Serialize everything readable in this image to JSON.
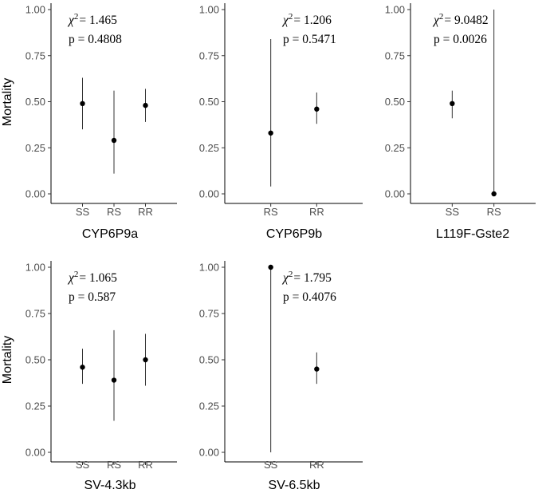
{
  "figure": {
    "ylabel": "Mortality",
    "y_ticks": [
      "0.00",
      "0.25",
      "0.50",
      "0.75",
      "1.00"
    ],
    "ylim": [
      0,
      1
    ]
  },
  "chart_data": [
    {
      "type": "scatter",
      "title": "",
      "xlabel": "CYP6P9a",
      "ylabel": "Mortality",
      "categories": [
        "SS",
        "RS",
        "RR"
      ],
      "values": [
        0.49,
        0.29,
        0.48
      ],
      "error_low": [
        0.35,
        0.11,
        0.39
      ],
      "error_high": [
        0.63,
        0.56,
        0.57
      ],
      "ylim": [
        0,
        1
      ],
      "annotation": {
        "chi_symbol": "χ",
        "chi_sup": "2",
        "chi_value": "= 1.465",
        "p_text": "p = 0.4808"
      }
    },
    {
      "type": "scatter",
      "title": "",
      "xlabel": "CYP6P9b",
      "ylabel": "",
      "categories": [
        "RS",
        "RR"
      ],
      "values": [
        0.33,
        0.46
      ],
      "error_low": [
        0.04,
        0.38
      ],
      "error_high": [
        0.84,
        0.55
      ],
      "ylim": [
        0,
        1
      ],
      "annotation": {
        "chi_symbol": "χ",
        "chi_sup": "2",
        "chi_value": "= 1.206",
        "p_text": "p = 0.5471"
      }
    },
    {
      "type": "scatter",
      "title": "",
      "xlabel": "L119F-Gste2",
      "ylabel": "",
      "categories": [
        "SS",
        "RS"
      ],
      "values": [
        0.49,
        0.0
      ],
      "error_low": [
        0.41,
        0.0
      ],
      "error_high": [
        0.56,
        1.0
      ],
      "ylim": [
        0,
        1
      ],
      "annotation": {
        "chi_symbol": "χ",
        "chi_sup": "2",
        "chi_value": "= 9.0482",
        "p_text": "p = 0.0026"
      }
    },
    {
      "type": "scatter",
      "title": "",
      "xlabel": "SV-4.3kb",
      "ylabel": "Mortality",
      "categories": [
        "SS",
        "RS",
        "RR"
      ],
      "values": [
        0.46,
        0.39,
        0.5
      ],
      "error_low": [
        0.37,
        0.17,
        0.36
      ],
      "error_high": [
        0.56,
        0.66,
        0.64
      ],
      "ylim": [
        0,
        1
      ],
      "annotation": {
        "chi_symbol": "χ",
        "chi_sup": "2",
        "chi_value": "= 1.065",
        "p_text": "p = 0.587"
      }
    },
    {
      "type": "scatter",
      "title": "",
      "xlabel": "SV-6.5kb",
      "ylabel": "",
      "categories": [
        "SS",
        "RR"
      ],
      "values": [
        1.0,
        0.45
      ],
      "error_low": [
        0.0,
        0.37
      ],
      "error_high": [
        1.0,
        0.54
      ],
      "ylim": [
        0,
        1
      ],
      "annotation": {
        "chi_symbol": "χ",
        "chi_sup": "2",
        "chi_value": "= 1.795",
        "p_text": "p = 0.4076"
      }
    }
  ]
}
